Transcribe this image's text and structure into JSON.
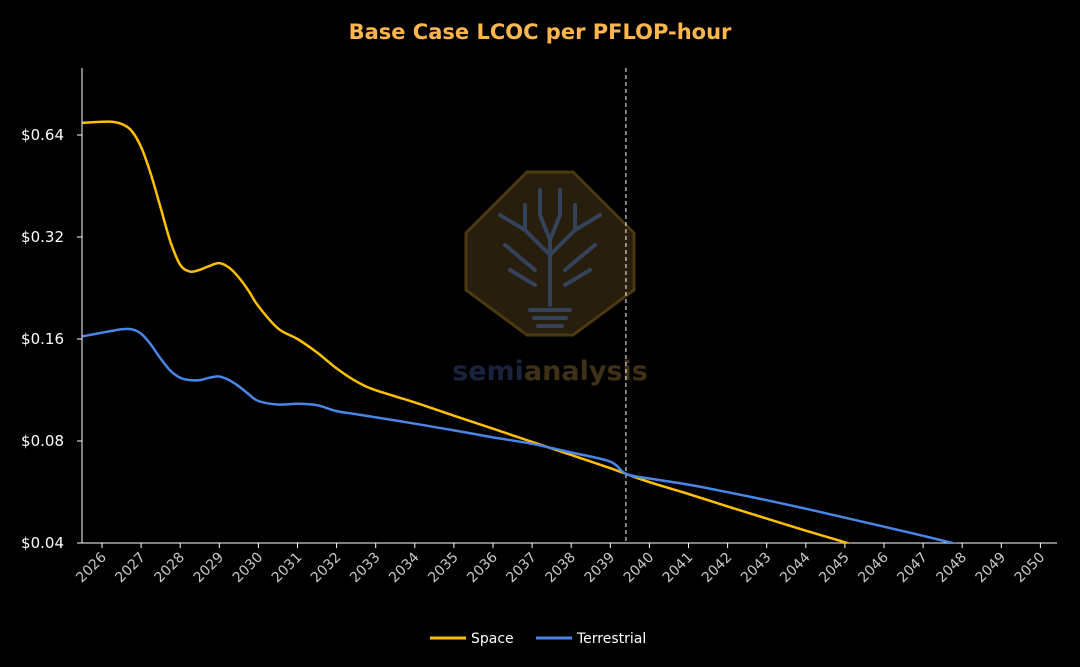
{
  "chart_data": {
    "type": "line",
    "title": "Base Case LCOC per PFLOP-hour",
    "y_scale": "log2",
    "ylim": [
      0.04,
      0.75
    ],
    "xlim": [
      2026,
      2050
    ],
    "y_ticks": [
      0.04,
      0.08,
      0.16,
      0.32,
      0.64
    ],
    "y_tick_labels": [
      "$0.04",
      "$0.08",
      "$0.16",
      "$0.32",
      "$0.64"
    ],
    "x": [
      2026,
      2027,
      2028,
      2029,
      2030,
      2031,
      2032,
      2033,
      2034,
      2035,
      2036,
      2037,
      2038,
      2039,
      2040,
      2041,
      2042,
      2043,
      2044,
      2045,
      2046,
      2047,
      2048,
      2049,
      2050
    ],
    "x_tick_labels": [
      "2026",
      "2027",
      "2028",
      "2029",
      "2030",
      "2031",
      "2032",
      "2033",
      "2034",
      "2035",
      "2036",
      "2037",
      "2038",
      "2039",
      "2040",
      "2041",
      "2042",
      "2043",
      "2044",
      "2045",
      "2046",
      "2047",
      "2048",
      "2049",
      "2050"
    ],
    "vline_x": 2039.4,
    "grid": false,
    "legend_position": "bottom",
    "series": [
      {
        "name": "Space",
        "color": "#FFC000",
        "x": [
          2025.5,
          2025.75,
          2026,
          2026.25,
          2026.5,
          2026.75,
          2027,
          2027.25,
          2027.5,
          2027.75,
          2028,
          2028.25,
          2028.5,
          2028.75,
          2029,
          2029.25,
          2029.5,
          2029.75,
          2030,
          2030.5,
          2031,
          2031.5,
          2032,
          2032.5,
          2033,
          2034,
          2035,
          2036,
          2037,
          2038,
          2039,
          2039.4,
          2040,
          2041,
          2042,
          2043,
          2044,
          2045,
          2046,
          2046.5
        ],
        "y": [
          0.695,
          0.698,
          0.7,
          0.7,
          0.69,
          0.66,
          0.59,
          0.49,
          0.39,
          0.31,
          0.265,
          0.253,
          0.256,
          0.263,
          0.268,
          0.26,
          0.243,
          0.222,
          0.2,
          0.172,
          0.16,
          0.146,
          0.131,
          0.12,
          0.113,
          0.104,
          0.095,
          0.087,
          0.0795,
          0.0728,
          0.0665,
          0.064,
          0.0605,
          0.0558,
          0.0513,
          0.0472,
          0.0435,
          0.0402,
          0.037,
          0.0355
        ]
      },
      {
        "name": "Terrestrial",
        "color": "#4A86E8",
        "x": [
          2025.5,
          2025.75,
          2026,
          2026.25,
          2026.5,
          2026.75,
          2027,
          2027.25,
          2027.5,
          2027.75,
          2028,
          2028.25,
          2028.5,
          2028.75,
          2029,
          2029.25,
          2029.5,
          2029.75,
          2030,
          2030.5,
          2031,
          2031.5,
          2032,
          2032.5,
          2033,
          2034,
          2035,
          2036,
          2037,
          2038,
          2039,
          2039.4,
          2040,
          2041,
          2042,
          2043,
          2044,
          2045,
          2046,
          2047,
          2048,
          2049,
          2049.5
        ],
        "y": [
          0.163,
          0.165,
          0.167,
          0.169,
          0.171,
          0.171,
          0.166,
          0.154,
          0.14,
          0.129,
          0.123,
          0.121,
          0.121,
          0.123,
          0.124,
          0.121,
          0.116,
          0.11,
          0.105,
          0.1025,
          0.103,
          0.102,
          0.098,
          0.096,
          0.094,
          0.09,
          0.086,
          0.082,
          0.0785,
          0.074,
          0.0695,
          0.064,
          0.062,
          0.0595,
          0.0565,
          0.0535,
          0.0505,
          0.0475,
          0.0447,
          0.042,
          0.0393,
          0.0366,
          0.0354
        ]
      }
    ]
  },
  "watermark": {
    "text_left": "semi",
    "text_right": "analysis",
    "icon": "tree-circuit-icon",
    "colors": {
      "octagon": "#2E2410",
      "outline": "#5A4412",
      "tree": "#3E4F6A",
      "semi": "#1E2A48",
      "analysis": "#4A3A1A"
    }
  },
  "style": {
    "background": "#000000",
    "title_color": "#FFB74D",
    "axis_color": "#FFFFFF",
    "vline_color": "#FFFFFF"
  }
}
